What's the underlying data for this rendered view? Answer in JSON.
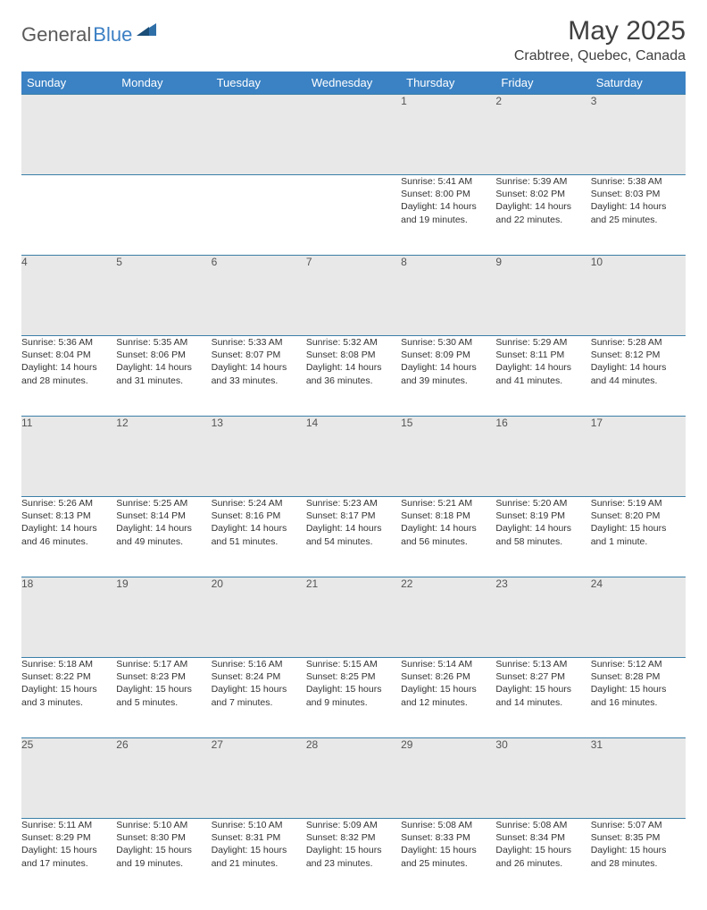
{
  "logo": {
    "text1": "General",
    "text2": "Blue"
  },
  "title": "May 2025",
  "location": "Crabtree, Quebec, Canada",
  "colors": {
    "header_bg": "#3b82c4",
    "header_fg": "#ffffff",
    "daynum_bg": "#e8e8e8",
    "border": "#3b7fa8",
    "title_color": "#404040",
    "logo_gray": "#5a5a5a",
    "logo_blue": "#3b7fc4"
  },
  "weekdays": [
    "Sunday",
    "Monday",
    "Tuesday",
    "Wednesday",
    "Thursday",
    "Friday",
    "Saturday"
  ],
  "weeks": [
    [
      {
        "n": "",
        "l": []
      },
      {
        "n": "",
        "l": []
      },
      {
        "n": "",
        "l": []
      },
      {
        "n": "",
        "l": []
      },
      {
        "n": "1",
        "l": [
          "Sunrise: 5:41 AM",
          "Sunset: 8:00 PM",
          "Daylight: 14 hours",
          "and 19 minutes."
        ]
      },
      {
        "n": "2",
        "l": [
          "Sunrise: 5:39 AM",
          "Sunset: 8:02 PM",
          "Daylight: 14 hours",
          "and 22 minutes."
        ]
      },
      {
        "n": "3",
        "l": [
          "Sunrise: 5:38 AM",
          "Sunset: 8:03 PM",
          "Daylight: 14 hours",
          "and 25 minutes."
        ]
      }
    ],
    [
      {
        "n": "4",
        "l": [
          "Sunrise: 5:36 AM",
          "Sunset: 8:04 PM",
          "Daylight: 14 hours",
          "and 28 minutes."
        ]
      },
      {
        "n": "5",
        "l": [
          "Sunrise: 5:35 AM",
          "Sunset: 8:06 PM",
          "Daylight: 14 hours",
          "and 31 minutes."
        ]
      },
      {
        "n": "6",
        "l": [
          "Sunrise: 5:33 AM",
          "Sunset: 8:07 PM",
          "Daylight: 14 hours",
          "and 33 minutes."
        ]
      },
      {
        "n": "7",
        "l": [
          "Sunrise: 5:32 AM",
          "Sunset: 8:08 PM",
          "Daylight: 14 hours",
          "and 36 minutes."
        ]
      },
      {
        "n": "8",
        "l": [
          "Sunrise: 5:30 AM",
          "Sunset: 8:09 PM",
          "Daylight: 14 hours",
          "and 39 minutes."
        ]
      },
      {
        "n": "9",
        "l": [
          "Sunrise: 5:29 AM",
          "Sunset: 8:11 PM",
          "Daylight: 14 hours",
          "and 41 minutes."
        ]
      },
      {
        "n": "10",
        "l": [
          "Sunrise: 5:28 AM",
          "Sunset: 8:12 PM",
          "Daylight: 14 hours",
          "and 44 minutes."
        ]
      }
    ],
    [
      {
        "n": "11",
        "l": [
          "Sunrise: 5:26 AM",
          "Sunset: 8:13 PM",
          "Daylight: 14 hours",
          "and 46 minutes."
        ]
      },
      {
        "n": "12",
        "l": [
          "Sunrise: 5:25 AM",
          "Sunset: 8:14 PM",
          "Daylight: 14 hours",
          "and 49 minutes."
        ]
      },
      {
        "n": "13",
        "l": [
          "Sunrise: 5:24 AM",
          "Sunset: 8:16 PM",
          "Daylight: 14 hours",
          "and 51 minutes."
        ]
      },
      {
        "n": "14",
        "l": [
          "Sunrise: 5:23 AM",
          "Sunset: 8:17 PM",
          "Daylight: 14 hours",
          "and 54 minutes."
        ]
      },
      {
        "n": "15",
        "l": [
          "Sunrise: 5:21 AM",
          "Sunset: 8:18 PM",
          "Daylight: 14 hours",
          "and 56 minutes."
        ]
      },
      {
        "n": "16",
        "l": [
          "Sunrise: 5:20 AM",
          "Sunset: 8:19 PM",
          "Daylight: 14 hours",
          "and 58 minutes."
        ]
      },
      {
        "n": "17",
        "l": [
          "Sunrise: 5:19 AM",
          "Sunset: 8:20 PM",
          "Daylight: 15 hours",
          "and 1 minute."
        ]
      }
    ],
    [
      {
        "n": "18",
        "l": [
          "Sunrise: 5:18 AM",
          "Sunset: 8:22 PM",
          "Daylight: 15 hours",
          "and 3 minutes."
        ]
      },
      {
        "n": "19",
        "l": [
          "Sunrise: 5:17 AM",
          "Sunset: 8:23 PM",
          "Daylight: 15 hours",
          "and 5 minutes."
        ]
      },
      {
        "n": "20",
        "l": [
          "Sunrise: 5:16 AM",
          "Sunset: 8:24 PM",
          "Daylight: 15 hours",
          "and 7 minutes."
        ]
      },
      {
        "n": "21",
        "l": [
          "Sunrise: 5:15 AM",
          "Sunset: 8:25 PM",
          "Daylight: 15 hours",
          "and 9 minutes."
        ]
      },
      {
        "n": "22",
        "l": [
          "Sunrise: 5:14 AM",
          "Sunset: 8:26 PM",
          "Daylight: 15 hours",
          "and 12 minutes."
        ]
      },
      {
        "n": "23",
        "l": [
          "Sunrise: 5:13 AM",
          "Sunset: 8:27 PM",
          "Daylight: 15 hours",
          "and 14 minutes."
        ]
      },
      {
        "n": "24",
        "l": [
          "Sunrise: 5:12 AM",
          "Sunset: 8:28 PM",
          "Daylight: 15 hours",
          "and 16 minutes."
        ]
      }
    ],
    [
      {
        "n": "25",
        "l": [
          "Sunrise: 5:11 AM",
          "Sunset: 8:29 PM",
          "Daylight: 15 hours",
          "and 17 minutes."
        ]
      },
      {
        "n": "26",
        "l": [
          "Sunrise: 5:10 AM",
          "Sunset: 8:30 PM",
          "Daylight: 15 hours",
          "and 19 minutes."
        ]
      },
      {
        "n": "27",
        "l": [
          "Sunrise: 5:10 AM",
          "Sunset: 8:31 PM",
          "Daylight: 15 hours",
          "and 21 minutes."
        ]
      },
      {
        "n": "28",
        "l": [
          "Sunrise: 5:09 AM",
          "Sunset: 8:32 PM",
          "Daylight: 15 hours",
          "and 23 minutes."
        ]
      },
      {
        "n": "29",
        "l": [
          "Sunrise: 5:08 AM",
          "Sunset: 8:33 PM",
          "Daylight: 15 hours",
          "and 25 minutes."
        ]
      },
      {
        "n": "30",
        "l": [
          "Sunrise: 5:08 AM",
          "Sunset: 8:34 PM",
          "Daylight: 15 hours",
          "and 26 minutes."
        ]
      },
      {
        "n": "31",
        "l": [
          "Sunrise: 5:07 AM",
          "Sunset: 8:35 PM",
          "Daylight: 15 hours",
          "and 28 minutes."
        ]
      }
    ]
  ]
}
